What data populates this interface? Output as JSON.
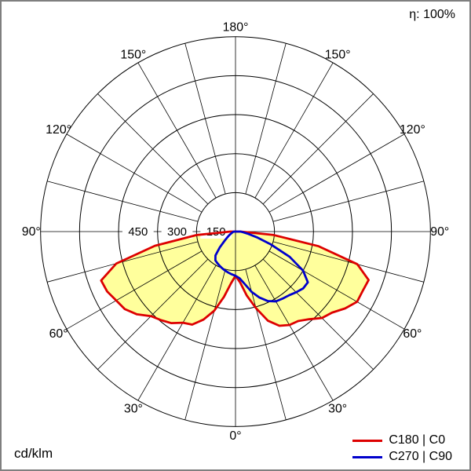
{
  "meta": {
    "efficiency_label": "η: 100%",
    "unit_label": "cd/klm"
  },
  "chart_data": {
    "type": "polar",
    "description": "Luminous intensity distribution polar diagram",
    "unit": "cd/klm",
    "efficiency_percent": 100,
    "gamma_deg": [
      0,
      5,
      10,
      15,
      20,
      25,
      30,
      35,
      40,
      45,
      50,
      55,
      60,
      65,
      70,
      75,
      80,
      85,
      90
    ],
    "grid": {
      "ring_values": [
        150,
        300,
        450,
        600,
        750
      ],
      "ring_labels": [
        {
          "value": 150,
          "label": "150"
        },
        {
          "value": 300,
          "label": "300"
        },
        {
          "value": 450,
          "label": "450"
        }
      ],
      "radial_step_deg": 15,
      "angle_labels": [
        {
          "value": 0,
          "label": "0°"
        },
        {
          "value": 30,
          "label": "30°"
        },
        {
          "value": 60,
          "label": "60°"
        },
        {
          "value": 90,
          "label": "90°"
        },
        {
          "value": 120,
          "label": "120°"
        },
        {
          "value": 150,
          "label": "150°"
        },
        {
          "value": 180,
          "label": "180°"
        }
      ]
    },
    "series": [
      {
        "name": "C180 | C0",
        "color": "#dd0000",
        "fill": "#ffff9c",
        "left_values": [
          170,
          200,
          255,
          315,
          360,
          395,
          405,
          430,
          445,
          460,
          495,
          520,
          530,
          545,
          550,
          475,
          315,
          150,
          20
        ],
        "right_values": [
          170,
          195,
          250,
          305,
          365,
          400,
          415,
          420,
          440,
          470,
          485,
          515,
          540,
          540,
          545,
          485,
          325,
          145,
          20
        ]
      },
      {
        "name": "C270 | C90",
        "color": "#0000cc",
        "fill": null,
        "left_values": [
          170,
          165,
          160,
          155,
          150,
          145,
          140,
          135,
          120,
          85,
          55,
          38,
          28,
          20,
          15,
          12,
          10,
          8,
          6
        ],
        "right_values": [
          170,
          180,
          205,
          240,
          270,
          295,
          310,
          315,
          320,
          330,
          340,
          340,
          300,
          230,
          145,
          85,
          50,
          30,
          20
        ]
      }
    ]
  }
}
